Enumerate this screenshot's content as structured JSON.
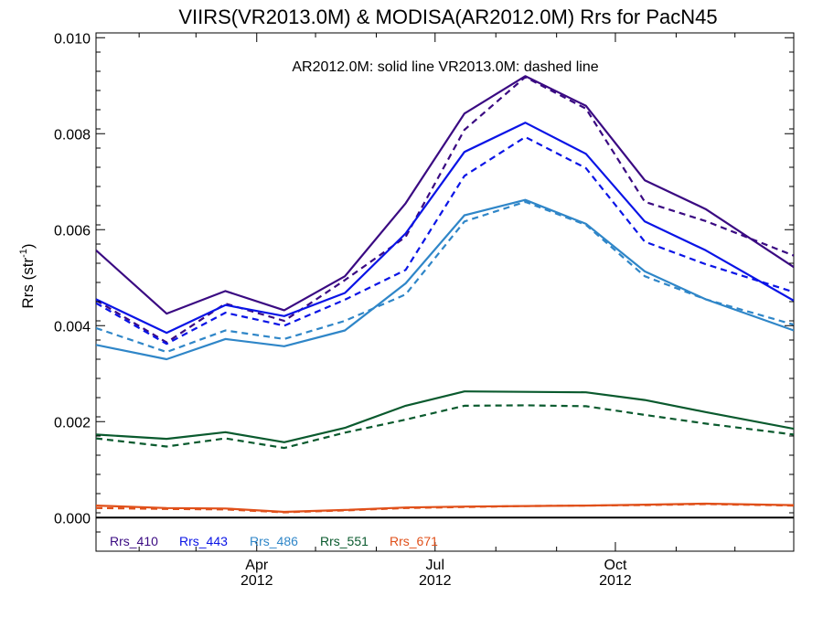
{
  "chart_data": {
    "type": "line",
    "title": "VIIRS(VR2013.0M) & MODISA(AR2012.0M)  Rrs for PacN45",
    "annotation": "AR2012.0M: solid line   VR2013.0M: dashed line",
    "ylabel": "Rrs (str",
    "ylabel_sup": "-1",
    "ylabel_close": ")",
    "xlabel": "",
    "ylim": [
      -0.0007,
      0.0101
    ],
    "yticks": [
      0.0,
      0.002,
      0.004,
      0.006,
      0.008,
      0.01
    ],
    "ytick_labels": [
      "0.000",
      "0.002",
      "0.004",
      "0.006",
      "0.008",
      "0.010"
    ],
    "xlim": [
      "2012-01-10",
      "2012-12-31"
    ],
    "xticks": [
      {
        "date": "2012-04-01",
        "label": "Apr",
        "year": "2012"
      },
      {
        "date": "2012-07-01",
        "label": "Jul",
        "year": "2012"
      },
      {
        "date": "2012-10-01",
        "label": "Oct",
        "year": "2012"
      }
    ],
    "x": [
      "2012-01-10",
      "2012-02-15",
      "2012-03-16",
      "2012-04-15",
      "2012-05-16",
      "2012-06-16",
      "2012-07-16",
      "2012-08-16",
      "2012-09-16",
      "2012-10-16",
      "2012-11-16",
      "2012-12-31"
    ],
    "legend_placement": "bottom-left",
    "zero_line": true,
    "grid": false,
    "series": [
      {
        "name": "Rrs_410",
        "color": "#3a0a82",
        "solid": [
          0.00557,
          0.00425,
          0.00472,
          0.00432,
          0.00503,
          0.00655,
          0.00842,
          0.0092,
          0.00858,
          0.00703,
          0.00643,
          0.00522
        ],
        "dashed": [
          0.00453,
          0.00365,
          0.00446,
          0.0041,
          0.00495,
          0.00585,
          0.00808,
          0.00918,
          0.00852,
          0.00658,
          0.00618,
          0.00546
        ]
      },
      {
        "name": "Rrs_443",
        "color": "#0a14e6",
        "solid": [
          0.00455,
          0.00385,
          0.00443,
          0.0042,
          0.00468,
          0.00592,
          0.00762,
          0.00823,
          0.00758,
          0.00617,
          0.00557,
          0.00452
        ],
        "dashed": [
          0.00447,
          0.00362,
          0.00427,
          0.004,
          0.00454,
          0.00516,
          0.00712,
          0.00793,
          0.00728,
          0.00575,
          0.00528,
          0.0047
        ]
      },
      {
        "name": "Rrs_486",
        "color": "#2f86c8",
        "solid": [
          0.0036,
          0.0033,
          0.00372,
          0.00357,
          0.0039,
          0.00488,
          0.0063,
          0.00662,
          0.00612,
          0.00513,
          0.00455,
          0.0039
        ],
        "dashed": [
          0.00395,
          0.00345,
          0.0039,
          0.00372,
          0.0041,
          0.00465,
          0.00617,
          0.00658,
          0.0061,
          0.00503,
          0.00455,
          0.00402
        ]
      },
      {
        "name": "Rrs_551",
        "color": "#0a5a2e",
        "solid": [
          0.00173,
          0.00164,
          0.00178,
          0.00157,
          0.00187,
          0.00233,
          0.00263,
          0.00262,
          0.00261,
          0.00245,
          0.0022,
          0.00185
        ],
        "dashed": [
          0.00165,
          0.00148,
          0.00165,
          0.00145,
          0.00177,
          0.00204,
          0.00233,
          0.00234,
          0.00232,
          0.00214,
          0.00196,
          0.00173
        ]
      },
      {
        "name": "Rrs_671",
        "color": "#e0501a",
        "solid": [
          0.00025,
          0.0002,
          0.00019,
          0.00012,
          0.00016,
          0.00021,
          0.00023,
          0.00024,
          0.00025,
          0.00027,
          0.00029,
          0.00026
        ],
        "dashed": [
          0.0002,
          0.00018,
          0.00017,
          0.00011,
          0.00015,
          0.0002,
          0.00022,
          0.00024,
          0.00025,
          0.00026,
          0.00028,
          0.00025
        ]
      }
    ]
  }
}
